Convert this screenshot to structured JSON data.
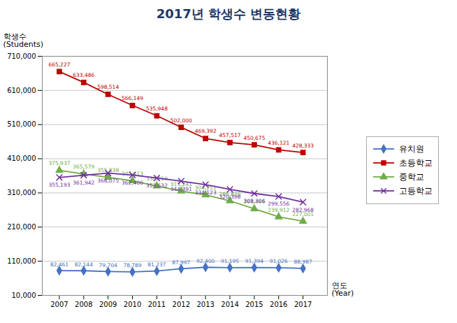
{
  "chart_data": {
    "type": "line",
    "title": "2017년 학생수 변동현황",
    "ylabel": "학생수\n(Students)",
    "xlabel": "연도\n(Year)",
    "x": [
      2007,
      2008,
      2009,
      2010,
      2011,
      2012,
      2013,
      2014,
      2015,
      2016,
      2017
    ],
    "series": [
      {
        "name": "유치원",
        "color": "#4472C4",
        "marker": "diamond",
        "values": [
          82461,
          82144,
          79704,
          78789,
          81237,
          87997,
          92400,
          91195,
          91394,
          91026,
          88987
        ],
        "value_labels": [
          "82,461",
          "82,144",
          "79,704",
          "78,789",
          "81,237",
          "87,997",
          "92,400",
          "91,195",
          "91,394",
          "91,026",
          "88,987"
        ]
      },
      {
        "name": "초등학교",
        "color": "#C00000",
        "marker": "square",
        "values": [
          665227,
          633486,
          598514,
          566149,
          535948,
          502000,
          469392,
          457517,
          450675,
          436121,
          428333
        ],
        "value_labels": [
          "665,227",
          "633,486",
          "598,514",
          "566,149",
          "535,948",
          "502,000",
          "469,392",
          "457,517",
          "450,675",
          "436,121",
          "428,333"
        ]
      },
      {
        "name": "중학교",
        "color": "#70AD47",
        "marker": "triangle",
        "values": [
          375937,
          365579,
          355838,
          345413,
          330219,
          315241,
          304251,
          286826,
          263466,
          239912,
          227001
        ],
        "value_labels": [
          "375,937",
          "365,579",
          "355,838",
          "345,413",
          "330,219",
          "315,241",
          "304,251",
          "286,826",
          "263,466",
          "239,912",
          "227,001"
        ]
      },
      {
        "name": "고등학교",
        "color": "#7030A0",
        "marker": "x",
        "values": [
          355193,
          361942,
          368075,
          362466,
          353632,
          344391,
          334123,
          320398,
          308306,
          299556,
          282968
        ],
        "value_labels": [
          "355,193",
          "361,942",
          "368,075",
          "362,466",
          "353,632",
          "344,391",
          "334,123",
          "320,398",
          "308,306",
          "299,556",
          "282,968"
        ]
      }
    ],
    "xlim": [
      2006.3,
      2018
    ],
    "xticks": [
      2007,
      2008,
      2009,
      2010,
      2011,
      2012,
      2013,
      2014,
      2015,
      2016,
      2017
    ],
    "ylim": [
      10000,
      710000
    ],
    "yticks": [
      {
        "value": 10000,
        "label": "10,000"
      },
      {
        "value": 110000,
        "label": "110,000"
      },
      {
        "value": 210000,
        "label": "210,000"
      },
      {
        "value": 310000,
        "label": "310,000"
      },
      {
        "value": 410000,
        "label": "410,000"
      },
      {
        "value": 510000,
        "label": "510,000"
      },
      {
        "value": 610000,
        "label": "610,000"
      },
      {
        "value": 710000,
        "label": "710,000"
      }
    ],
    "grid": true,
    "legend": "right",
    "data_labels": true
  }
}
